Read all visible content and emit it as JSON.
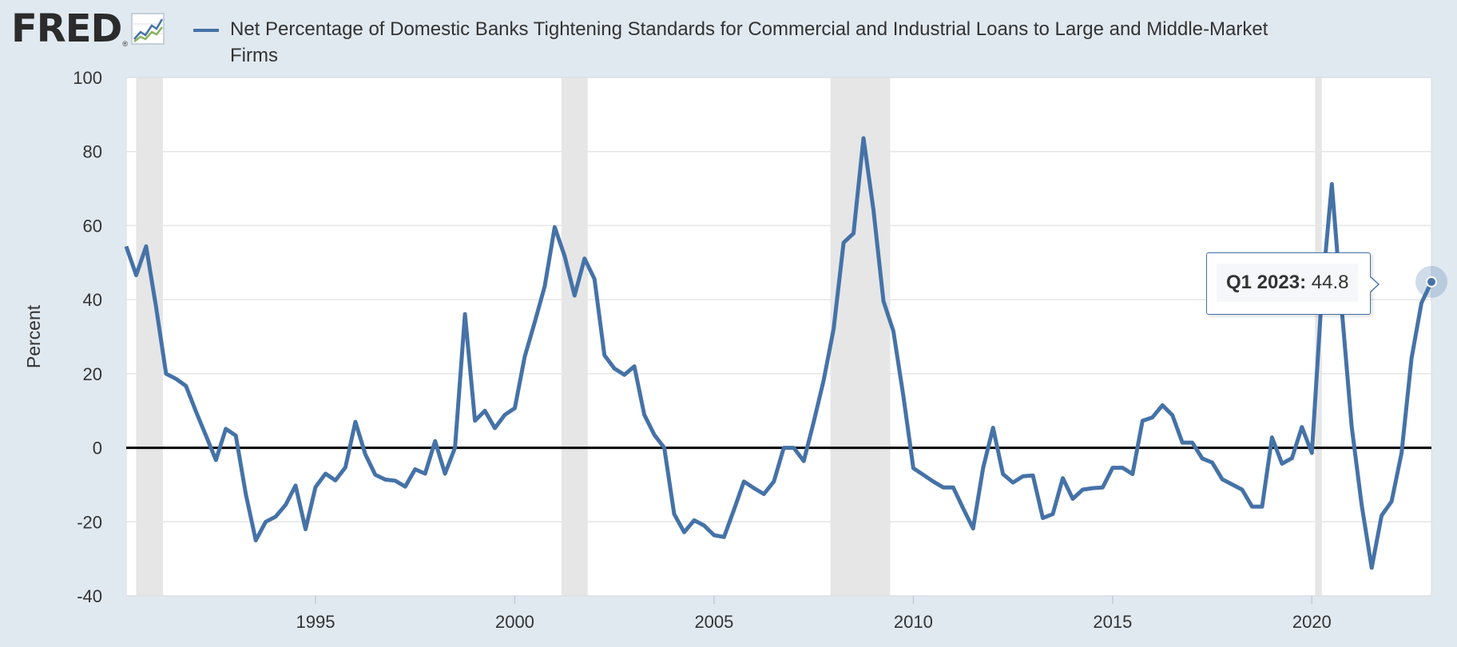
{
  "header": {
    "logo_text": "FRED",
    "logo_registered": "®"
  },
  "colors": {
    "background": "#e1e9f0",
    "plot_background": "#ffffff",
    "series": "#4572a7",
    "recession": "#e6e6e6",
    "gridline": "#e6e6e6",
    "zero_line": "#000000"
  },
  "tooltip": {
    "label": "Q1 2023:",
    "value": "44.8"
  },
  "chart_data": {
    "type": "line",
    "title": "Net Percentage of Domestic Banks Tightening Standards for Commercial and Industrial Loans to Large and Middle-Market Firms",
    "ylabel": "Percent",
    "xlabel": "",
    "ylim": [
      -40,
      100
    ],
    "xlim": [
      1990.25,
      2023.0
    ],
    "yticks": [
      100,
      80,
      60,
      40,
      20,
      0,
      -20,
      -40
    ],
    "xticks": [
      1995,
      2000,
      2005,
      2010,
      2015,
      2020
    ],
    "grid": true,
    "legend_position": "top",
    "recessions": [
      [
        1990.5,
        1991.17
      ],
      [
        2001.17,
        2001.83
      ],
      [
        2007.92,
        2009.42
      ],
      [
        2020.08,
        2020.25
      ]
    ],
    "series": [
      {
        "name": "Net Percentage of Domestic Banks Tightening Standards for Commercial and Industrial Loans to Large and Middle-Market Firms",
        "x": [
          1990.25,
          1990.5,
          1990.75,
          1991.0,
          1991.25,
          1991.5,
          1991.75,
          1992.0,
          1992.25,
          1992.5,
          1992.75,
          1993.0,
          1993.25,
          1993.5,
          1993.75,
          1994.0,
          1994.25,
          1994.5,
          1994.75,
          1995.0,
          1995.25,
          1995.5,
          1995.75,
          1996.0,
          1996.25,
          1996.5,
          1996.75,
          1997.0,
          1997.25,
          1997.5,
          1997.75,
          1998.0,
          1998.25,
          1998.5,
          1998.75,
          1999.0,
          1999.25,
          1999.5,
          1999.75,
          2000.0,
          2000.25,
          2000.5,
          2000.75,
          2001.0,
          2001.25,
          2001.5,
          2001.75,
          2002.0,
          2002.25,
          2002.5,
          2002.75,
          2003.0,
          2003.25,
          2003.5,
          2003.75,
          2004.0,
          2004.25,
          2004.5,
          2004.75,
          2005.0,
          2005.25,
          2005.5,
          2005.75,
          2006.0,
          2006.25,
          2006.5,
          2006.75,
          2007.0,
          2007.25,
          2007.5,
          2007.75,
          2008.0,
          2008.25,
          2008.5,
          2008.75,
          2009.0,
          2009.25,
          2009.5,
          2009.75,
          2010.0,
          2010.25,
          2010.5,
          2010.75,
          2011.0,
          2011.25,
          2011.5,
          2011.75,
          2012.0,
          2012.25,
          2012.5,
          2012.75,
          2013.0,
          2013.25,
          2013.5,
          2013.75,
          2014.0,
          2014.25,
          2014.5,
          2014.75,
          2015.0,
          2015.25,
          2015.5,
          2015.75,
          2016.0,
          2016.25,
          2016.5,
          2016.75,
          2017.0,
          2017.25,
          2017.5,
          2017.75,
          2018.0,
          2018.25,
          2018.5,
          2018.75,
          2019.0,
          2019.25,
          2019.5,
          2019.75,
          2020.0,
          2020.25,
          2020.5,
          2020.75,
          2021.0,
          2021.25,
          2021.5,
          2021.75,
          2022.0,
          2022.25,
          2022.5,
          2022.75,
          2023.0
        ],
        "values": [
          54.4,
          46.6,
          54.4,
          38.0,
          20.0,
          18.6,
          16.7,
          9.8,
          3.3,
          -3.3,
          5.1,
          3.3,
          -12.5,
          -25.0,
          -20.0,
          -18.6,
          -15.4,
          -10.2,
          -22.0,
          -10.6,
          -7.0,
          -8.8,
          -5.3,
          7.0,
          -1.8,
          -7.3,
          -8.6,
          -8.9,
          -10.5,
          -5.8,
          -7.0,
          1.8,
          -7.0,
          0.0,
          36.1,
          7.3,
          10.0,
          5.3,
          8.9,
          10.7,
          24.6,
          33.9,
          43.6,
          59.6,
          51.8,
          41.1,
          51.1,
          45.6,
          25.0,
          21.4,
          19.7,
          22.0,
          8.9,
          3.5,
          0.0,
          -17.9,
          -22.8,
          -19.6,
          -21.0,
          -23.6,
          -24.1,
          -16.7,
          -9.1,
          -10.9,
          -12.5,
          -9.1,
          0.0,
          0.0,
          -3.6,
          7.0,
          18.2,
          32.1,
          55.4,
          57.9,
          83.6,
          64.2,
          39.6,
          31.5,
          14.0,
          -5.5,
          -7.3,
          -9.1,
          -10.7,
          -10.7,
          -16.4,
          -21.8,
          -5.5,
          5.4,
          -7.1,
          -9.4,
          -7.7,
          -7.5,
          -19.0,
          -17.9,
          -8.2,
          -13.8,
          -11.3,
          -10.9,
          -10.7,
          -5.4,
          -5.4,
          -7.1,
          7.3,
          8.2,
          11.5,
          8.8,
          1.4,
          1.4,
          -2.9,
          -4.0,
          -8.5,
          -9.9,
          -11.3,
          -15.9,
          -15.9,
          2.8,
          -4.3,
          -2.8,
          5.6,
          -1.4,
          41.5,
          71.2,
          37.5,
          5.6,
          -15.5,
          -32.4,
          -18.3,
          -14.5,
          -1.4,
          24.2,
          39.1,
          44.8
        ]
      }
    ]
  }
}
